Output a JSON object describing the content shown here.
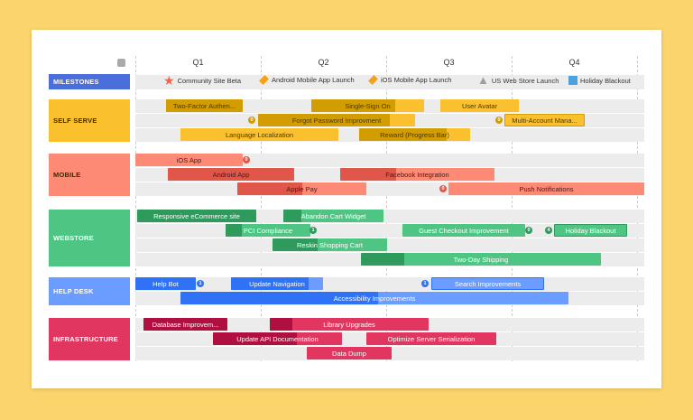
{
  "header": {
    "quarters": [
      "Q1",
      "Q2",
      "Q3",
      "Q4"
    ],
    "settings_icon": "calendar-gear-icon"
  },
  "milestones": {
    "label": "MILESTONES",
    "color": "#4a6fdc",
    "items": [
      {
        "label": "Community Site Beta",
        "icon": "star-icon",
        "color": "#f4624a"
      },
      {
        "label": "Android Mobile App Launch",
        "icon": "diamond-icon",
        "color": "#f7a11a"
      },
      {
        "label": "iOS Mobile App Launch",
        "icon": "diamond-icon",
        "color": "#f7a11a"
      },
      {
        "label": "US Web Store Launch",
        "icon": "warning-icon",
        "color": "#9aa09a"
      },
      {
        "label": "Holiday Blackout",
        "icon": "square-icon",
        "color": "#4aa3df"
      }
    ]
  },
  "groups": [
    {
      "label": "SELF SERVE",
      "color": "#fbc02d",
      "dark": "#d29d00",
      "text": "#4a3800",
      "bars": [
        {
          "label": "Two-Factor Authen...",
          "progress": 1
        },
        {
          "label": "Single-Sign On",
          "progress": 0.74
        },
        {
          "label": "User Avatar",
          "progress": 0
        },
        {
          "label": "Forgot Password Improvment",
          "progress": 0.84,
          "badge": "0"
        },
        {
          "label": "Multi-Account Mana...",
          "progress": 0,
          "badge": "0"
        },
        {
          "label": "Language Localization",
          "progress": 0
        },
        {
          "label": "Reward (Progress Bar)",
          "progress": 0.79
        }
      ]
    },
    {
      "label": "MOBILE",
      "color": "#fd8a74",
      "dark": "#e0574a",
      "text": "#4a1a12",
      "bars": [
        {
          "label": "iOS App",
          "progress": 0,
          "badge_after": "0"
        },
        {
          "label": "Android App",
          "progress": 1
        },
        {
          "label": "Facebook Integration",
          "progress": 0.36
        },
        {
          "label": "Apple Pay",
          "progress": 0.5
        },
        {
          "label": "Push Notifications",
          "progress": 0,
          "badge": "0"
        }
      ]
    },
    {
      "label": "WEBSTORE",
      "color": "#4ec583",
      "dark": "#2e9b5d",
      "text": "#ffffff",
      "bars": [
        {
          "label": "Responsive eCommerce site",
          "progress": 1
        },
        {
          "label": "Abandon Cart Widget",
          "progress": 0.18
        },
        {
          "label": "PCI Compliance",
          "progress": 0.19,
          "badge_after": "1"
        },
        {
          "label": "Guest Checkout Improvement",
          "progress": 0,
          "badge_after": "0"
        },
        {
          "label": "Holiday Blackout",
          "progress": 0,
          "badge": "4"
        },
        {
          "label": "Reskin Shopping Cart",
          "progress": 0.39
        },
        {
          "label": "Two-Day Shipping",
          "progress": 0.18
        }
      ]
    },
    {
      "label": "HELP DESK",
      "color": "#6b9cff",
      "dark": "#2f72f6",
      "text": "#ffffff",
      "bars": [
        {
          "label": "Help Bot",
          "progress": 1,
          "badge_after": "1"
        },
        {
          "label": "Update Navigation",
          "progress": 0.84
        },
        {
          "label": "Search Improvements",
          "progress": 0,
          "badge": "1"
        },
        {
          "label": "Accessibility Improvements",
          "progress": 0.51
        }
      ]
    },
    {
      "label": "INFRASTRUCTURE",
      "color": "#e0365f",
      "dark": "#b0103f",
      "text": "#ffffff",
      "bars": [
        {
          "label": "Database Improvem...",
          "progress": 1
        },
        {
          "label": "Library Upgrades",
          "progress": 0.14
        },
        {
          "label": "Update API Documentation",
          "progress": 0.65
        },
        {
          "label": "Optimize Server Serialization",
          "progress": 0
        },
        {
          "label": "Data Dump",
          "progress": 0
        }
      ]
    }
  ]
}
